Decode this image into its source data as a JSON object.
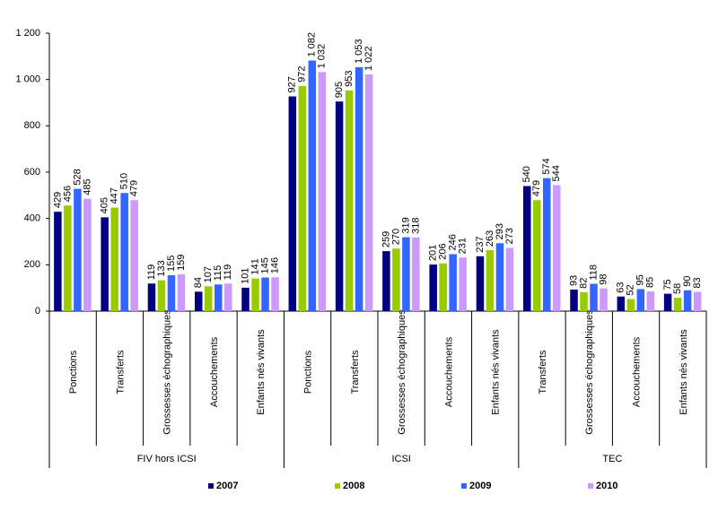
{
  "chart_data": {
    "type": "bar",
    "category_groups": [
      {
        "name": "FIV hors ICSI",
        "categories": [
          "Ponctions",
          "Transferts",
          "Grossesses échographiques",
          "Accouchements",
          "Enfants nés vivants"
        ]
      },
      {
        "name": "ICSI",
        "categories": [
          "Ponctions",
          "Transferts",
          "Grossesses échographiques",
          "Accouchements",
          "Enfants nés vivants"
        ]
      },
      {
        "name": "TEC",
        "categories": [
          "Transferts",
          "Grossesses échographiques",
          "Accouchements",
          "Enfants nés vivants"
        ]
      }
    ],
    "series": [
      {
        "name": "2007",
        "color": "#000080",
        "values": [
          429,
          405,
          119,
          84,
          101,
          927,
          905,
          259,
          201,
          237,
          540,
          93,
          63,
          75
        ],
        "value_labels": [
          "429",
          "405",
          "119",
          "84",
          "101",
          "927",
          "905",
          "259",
          "201",
          "237",
          "540",
          "93",
          "63",
          "75"
        ]
      },
      {
        "name": "2008",
        "color": "#99cc00",
        "values": [
          456,
          447,
          133,
          107,
          141,
          972,
          953,
          270,
          206,
          263,
          479,
          82,
          52,
          58
        ],
        "value_labels": [
          "456",
          "447",
          "133",
          "107",
          "141",
          "972",
          "953",
          "270",
          "206",
          "263",
          "479",
          "82",
          "52",
          "58"
        ]
      },
      {
        "name": "2009",
        "color": "#3366ff",
        "values": [
          528,
          510,
          155,
          115,
          145,
          1082,
          1053,
          319,
          246,
          293,
          574,
          118,
          95,
          90
        ],
        "value_labels": [
          "528",
          "510",
          "155",
          "115",
          "145",
          "1 082",
          "1 053",
          "319",
          "246",
          "293",
          "574",
          "118",
          "95",
          "90"
        ]
      },
      {
        "name": "2010",
        "color": "#cc99ff",
        "values": [
          485,
          479,
          159,
          119,
          146,
          1032,
          1022,
          318,
          231,
          273,
          544,
          98,
          85,
          83
        ],
        "value_labels": [
          "485",
          "479",
          "159",
          "119",
          "146",
          "1 032",
          "1 022",
          "318",
          "231",
          "273",
          "544",
          "98",
          "85",
          "83"
        ]
      }
    ],
    "ylim": [
      0,
      1200
    ],
    "yticks": [
      0,
      200,
      400,
      600,
      800,
      {
        "value": 1000,
        "label": "1 000"
      },
      {
        "value": 1200,
        "label": "1 200"
      }
    ],
    "legend": "bottom"
  }
}
